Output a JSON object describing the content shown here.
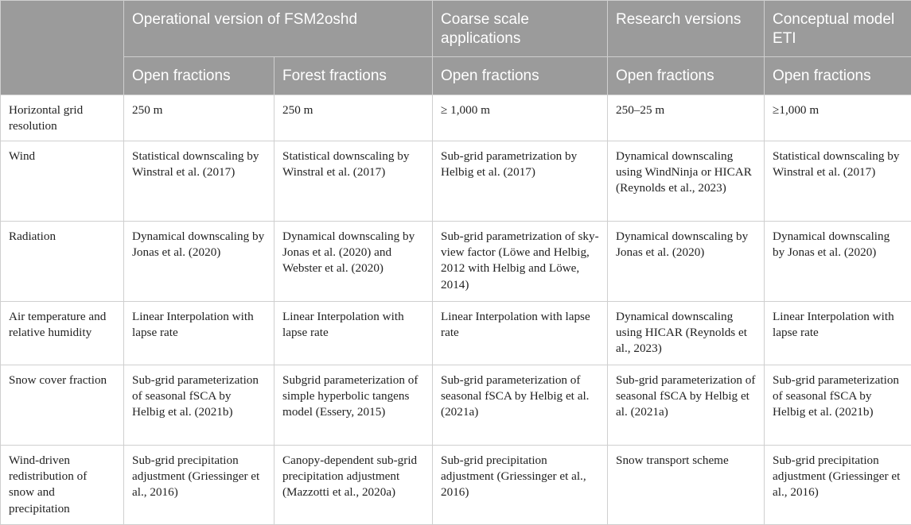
{
  "header": {
    "groups": [
      {
        "label": "Operational version of FSM2oshd"
      },
      {
        "label": "Coarse scale applications"
      },
      {
        "label": "Research versions"
      },
      {
        "label": "Conceptual model ETI"
      }
    ],
    "subheaders": [
      "Open fractions",
      "Forest fractions",
      "Open fractions",
      "Open fractions",
      "Open fractions"
    ]
  },
  "rows": [
    {
      "label": "Horizontal grid resolution",
      "cells": [
        "250 m",
        "250 m",
        "≥ 1,000 m",
        "250–25 m",
        "≥1,000 m"
      ]
    },
    {
      "label": "Wind",
      "cells": [
        "Statistical downscaling by Winstral et al. (2017)",
        "Statistical downscaling by Winstral et al. (2017)",
        "Sub-grid parametrization by Helbig et al. (2017)",
        "Dynamical downscaling using WindNinja or HICAR (Reynolds et al., 2023)",
        "Statistical downscaling by Winstral et al. (2017)"
      ]
    },
    {
      "label": "Radiation",
      "cells": [
        "Dynamical downscaling by Jonas et al. (2020)",
        "Dynamical downscaling by Jonas et al. (2020) and Webster et al. (2020)",
        "Sub-grid parametrization of sky-view factor (Löwe and Helbig, 2012 with Helbig and Löwe, 2014)",
        "Dynamical downscaling by Jonas et al. (2020)",
        "Dynamical downscaling by Jonas et al. (2020)"
      ]
    },
    {
      "label": "Air temperature and relative humidity",
      "cells": [
        "Linear Interpolation with lapse rate",
        "Linear Interpolation with lapse rate",
        "Linear Interpolation with lapse rate",
        "Dynamical downscaling using HICAR (Reynolds et al., 2023)",
        "Linear Interpolation with lapse rate"
      ]
    },
    {
      "label": "Snow cover fraction",
      "cells": [
        "Sub-grid parameterization of seasonal fSCA by Helbig et al. (2021b)",
        "Subgrid parameterization of simple hyperbolic tangens model (Essery, 2015)",
        "Sub-grid parameterization of seasonal fSCA by Helbig et al. (2021a)",
        "Sub-grid parameterization of seasonal fSCA by Helbig et al. (2021a)",
        "Sub-grid parameterization of seasonal fSCA by Helbig et al. (2021b)"
      ]
    },
    {
      "label": "Wind-driven redistribution of snow and precipitation",
      "cells": [
        "Sub-grid precipitation adjustment (Griessinger et al., 2016)",
        "Canopy-dependent sub-grid precipitation adjustment (Mazzotti et al., 2020a)",
        "Sub-grid precipitation adjustment (Griessinger et al., 2016)",
        "Snow transport scheme",
        "Sub-grid precipitation adjustment (Griessinger et al., 2016)"
      ]
    }
  ]
}
